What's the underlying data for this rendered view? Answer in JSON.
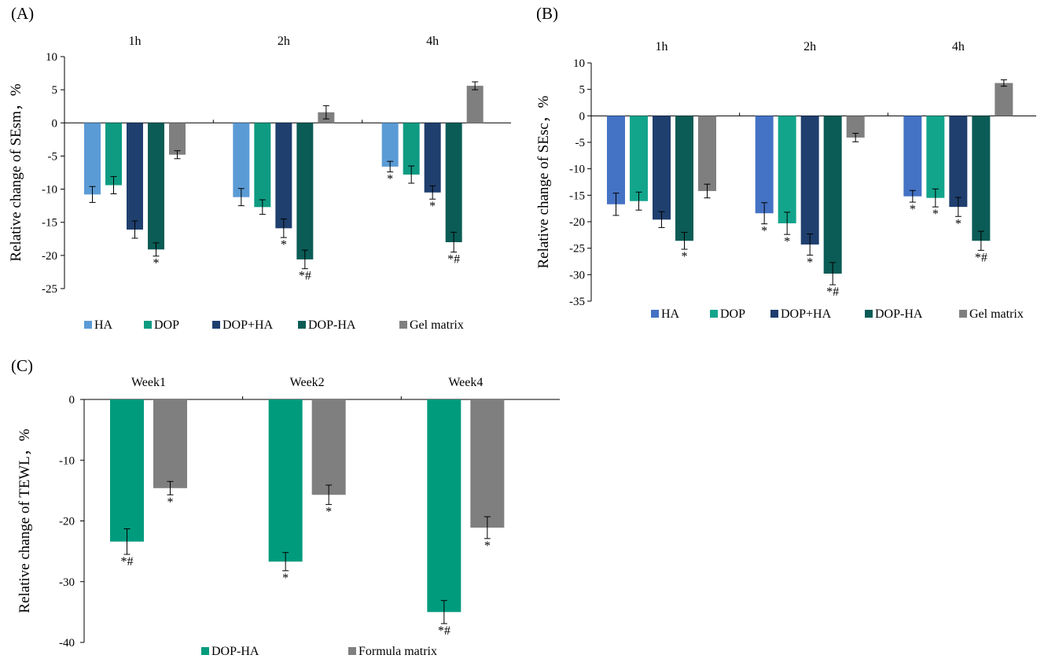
{
  "panels": [
    {
      "panel_label": "(A)",
      "chart_data": {
        "type": "bar",
        "categories": [
          "1h",
          "2h",
          "4h"
        ],
        "ylabel": "Relative change of SEsm，%",
        "ylim": [
          -25,
          10
        ],
        "yticks": [
          10,
          5,
          0,
          -5,
          -10,
          -15,
          -20,
          -25
        ],
        "series": [
          {
            "name": "HA",
            "color": "#5b9bd5",
            "values": [
              -10.8,
              -11.2,
              -6.6
            ],
            "errors": [
              1.2,
              1.3,
              0.8
            ],
            "annotations": [
              "",
              "",
              "*"
            ]
          },
          {
            "name": "DOP",
            "color": "#0e9b82",
            "values": [
              -9.4,
              -12.7,
              -7.8
            ],
            "errors": [
              1.3,
              1.1,
              1.3
            ],
            "annotations": [
              "",
              "",
              ""
            ]
          },
          {
            "name": "DOP+HA",
            "color": "#1f3f6e",
            "values": [
              -16.1,
              -15.9,
              -10.5
            ],
            "errors": [
              1.3,
              1.4,
              1.0
            ],
            "annotations": [
              "",
              "*",
              "*"
            ]
          },
          {
            "name": "DOP-HA",
            "color": "#0b5c56",
            "values": [
              -19.1,
              -20.6,
              -18.0
            ],
            "errors": [
              1.0,
              1.4,
              1.5
            ],
            "annotations": [
              "*",
              "*#",
              "*#"
            ]
          },
          {
            "name": "Gel matrix",
            "color": "#7f7f7f",
            "values": [
              -4.8,
              1.6,
              5.6
            ],
            "errors": [
              0.6,
              1.0,
              0.6
            ],
            "annotations": [
              "",
              "",
              ""
            ]
          }
        ],
        "legend_position": "bottom"
      }
    },
    {
      "panel_label": "(B)",
      "chart_data": {
        "type": "bar",
        "categories": [
          "1h",
          "2h",
          "4h"
        ],
        "ylabel": "Relative change of SEsc，%",
        "ylim": [
          -35,
          10
        ],
        "yticks": [
          10,
          5,
          0,
          -5,
          -10,
          -15,
          -20,
          -25,
          -30,
          -35
        ],
        "series": [
          {
            "name": "HA",
            "color": "#4472c4",
            "values": [
              -16.7,
              -18.4,
              -15.2
            ],
            "errors": [
              2.1,
              2.0,
              1.1
            ],
            "annotations": [
              "",
              "*",
              "*"
            ]
          },
          {
            "name": "DOP",
            "color": "#12a58c",
            "values": [
              -16.1,
              -20.3,
              -15.5
            ],
            "errors": [
              1.7,
              2.1,
              1.7
            ],
            "annotations": [
              "",
              "*",
              "*"
            ]
          },
          {
            "name": "DOP+HA",
            "color": "#1f3f6e",
            "values": [
              -19.6,
              -24.3,
              -17.2
            ],
            "errors": [
              1.5,
              2.0,
              1.8
            ],
            "annotations": [
              "",
              "*",
              "*"
            ]
          },
          {
            "name": "DOP-HA",
            "color": "#0b5c56",
            "values": [
              -23.6,
              -29.8,
              -23.6
            ],
            "errors": [
              1.6,
              2.1,
              1.8
            ],
            "annotations": [
              "*",
              "*#",
              "*#"
            ]
          },
          {
            "name": "Gel matrix",
            "color": "#7f7f7f",
            "values": [
              -14.2,
              -4.1,
              6.2
            ],
            "errors": [
              1.3,
              0.8,
              0.6
            ],
            "annotations": [
              "",
              "",
              ""
            ]
          }
        ],
        "legend_position": "bottom"
      }
    },
    {
      "panel_label": "(C)",
      "chart_data": {
        "type": "bar",
        "categories": [
          "Week1",
          "Week2",
          "Week4"
        ],
        "ylabel": "Relative change of TEWL，%",
        "ylim": [
          -40,
          0
        ],
        "yticks": [
          0,
          -10,
          -20,
          -30,
          -40
        ],
        "series": [
          {
            "name": "DOP-HA",
            "color": "#009b7d",
            "values": [
              -23.4,
              -26.7,
              -35.0
            ],
            "errors": [
              2.1,
              1.5,
              1.9
            ],
            "annotations": [
              "*#",
              "*",
              "*#"
            ]
          },
          {
            "name": "Formula matrix",
            "color": "#7f7f7f",
            "values": [
              -14.6,
              -15.7,
              -21.1
            ],
            "errors": [
              1.1,
              1.6,
              1.8
            ],
            "annotations": [
              "*",
              "*",
              "*"
            ]
          }
        ],
        "legend_position": "bottom"
      }
    }
  ]
}
